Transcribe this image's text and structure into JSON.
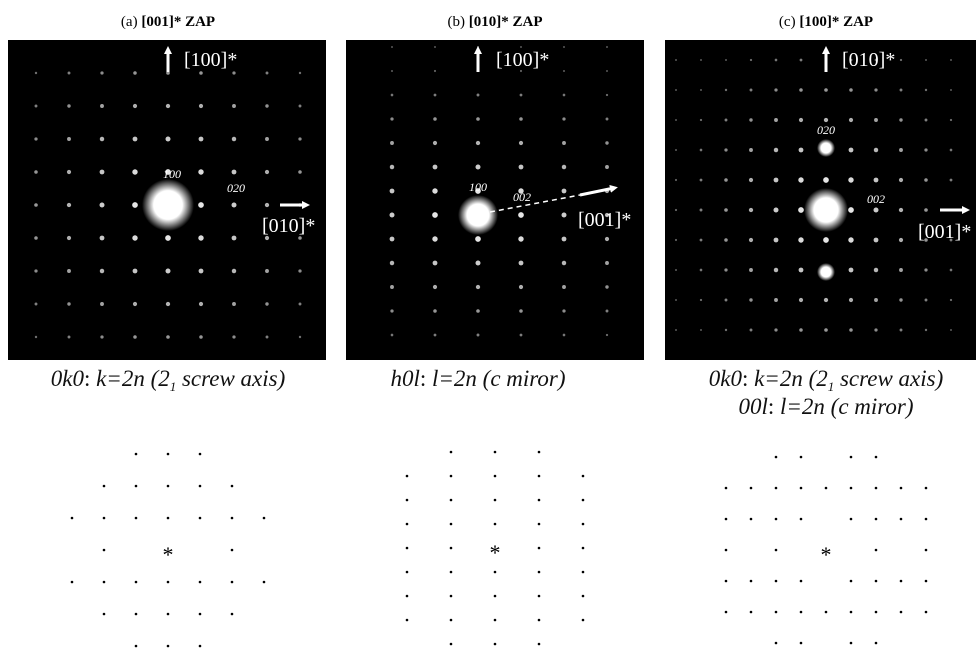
{
  "panels": [
    {
      "label": "(a)",
      "zone": "[001]* ZAP",
      "axis_up": "[100]*",
      "axis_side": "[010]*",
      "spots": [
        "100",
        "020"
      ],
      "caption": [
        [
          "0k0",
          ": ",
          "k=2n (2",
          "1",
          " screw axis)"
        ]
      ],
      "center_mark": "*"
    },
    {
      "label": "(b)",
      "zone": "[010]* ZAP",
      "axis_up": "[100]*",
      "axis_side": "[001]*",
      "spots": [
        "100",
        "002"
      ],
      "caption": [
        [
          "h0l",
          ": ",
          "l=2n (c miror)"
        ]
      ],
      "center_mark": "*"
    },
    {
      "label": "(c)",
      "zone": "[100]* ZAP",
      "axis_up": "[010]*",
      "axis_side": "[001]*",
      "spots": [
        "020",
        "002"
      ],
      "caption": [
        [
          "0k0",
          ": ",
          "k=2n (2",
          "1",
          " screw axis)"
        ],
        [
          "00l",
          ": ",
          "l=2n (c miror)"
        ]
      ],
      "center_mark": "*"
    }
  ]
}
